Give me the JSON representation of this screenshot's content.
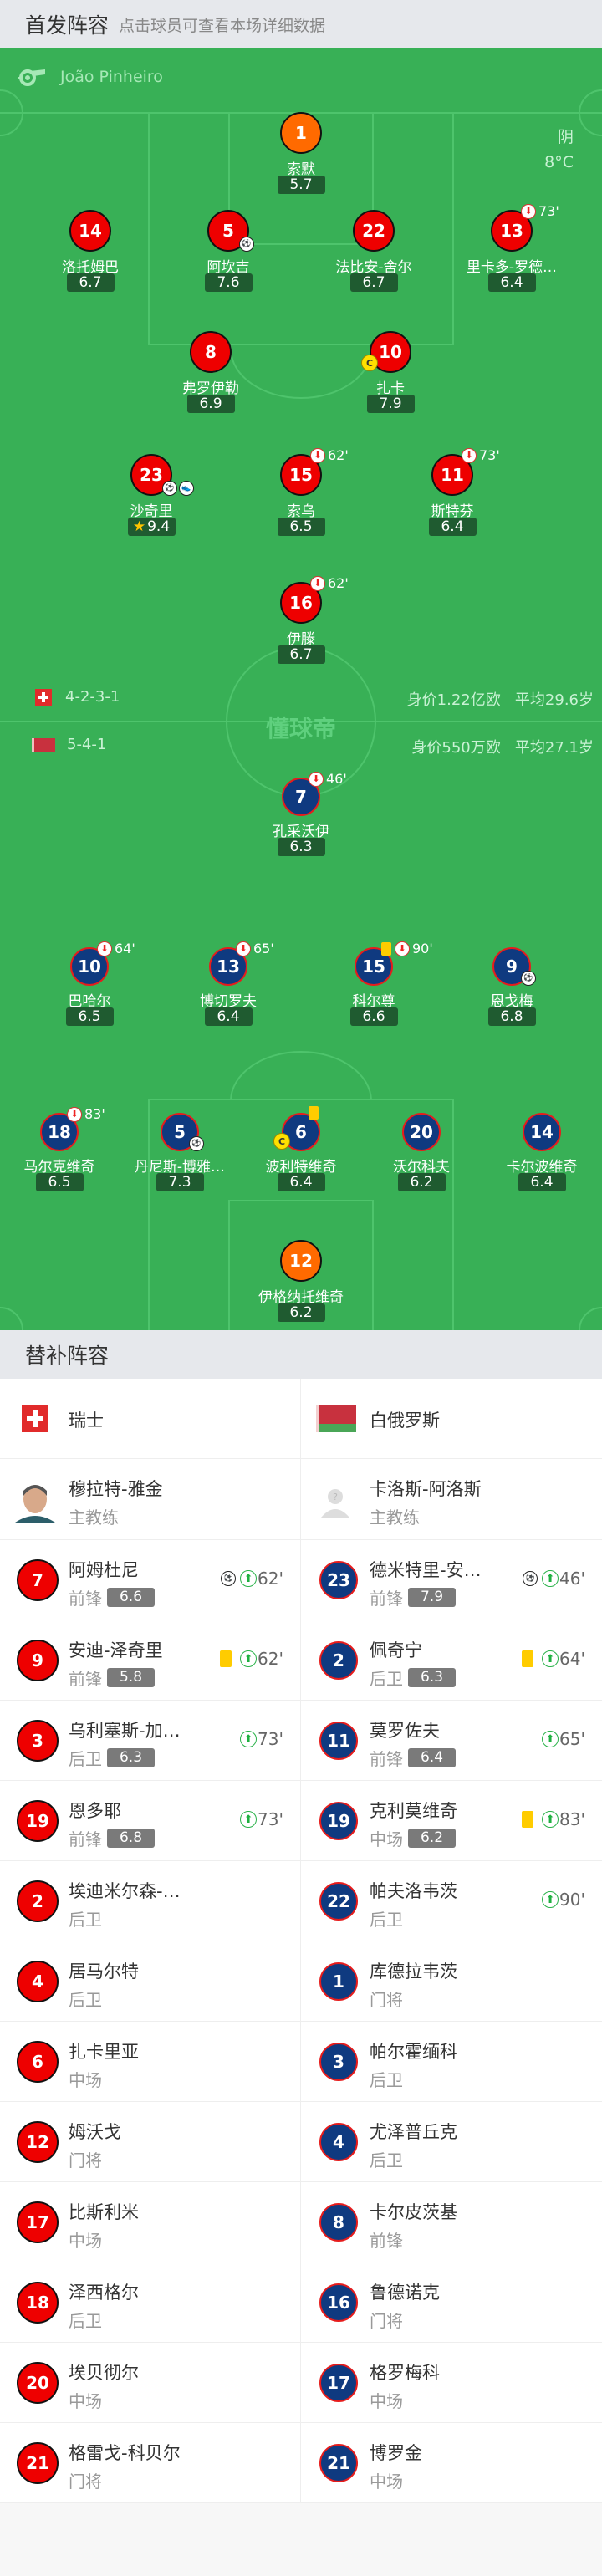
{
  "header": {
    "title": "首发阵容",
    "subtitle": "点击球员可查看本场详细数据"
  },
  "referee": {
    "icon": "whistle-icon",
    "name": "João Pinheiro"
  },
  "weather": {
    "condition": "阴",
    "temp": "8°C"
  },
  "watermark": "懂球帝",
  "colors": {
    "pitch": "#38b056",
    "home": "#ee0000",
    "away": "#0f3a80",
    "goalkeeper": "#ff6a00",
    "rating_bg": "#1f5b30"
  },
  "home": {
    "team": "瑞士",
    "formation": "4-2-3-1",
    "value": "身价1.22亿欧",
    "avg_age": "平均29.6岁",
    "players": [
      {
        "num": "1",
        "name": "索默",
        "rating": "5.7",
        "gk": true
      },
      {
        "num": "14",
        "name": "洛托姆巴",
        "rating": "6.7"
      },
      {
        "num": "5",
        "name": "阿坎吉",
        "rating": "7.6",
        "goal": true
      },
      {
        "num": "22",
        "name": "法比安-舍尔",
        "rating": "6.7"
      },
      {
        "num": "13",
        "name": "里卡多-罗德…",
        "rating": "6.4",
        "sub_off": "73'"
      },
      {
        "num": "8",
        "name": "弗罗伊勒",
        "rating": "6.9"
      },
      {
        "num": "10",
        "name": "扎卡",
        "rating": "7.9",
        "captain": "C"
      },
      {
        "num": "23",
        "name": "沙奇里",
        "rating": "9.4",
        "goal": true,
        "assist": true,
        "mvp": true
      },
      {
        "num": "15",
        "name": "索乌",
        "rating": "6.5",
        "sub_off": "62'"
      },
      {
        "num": "11",
        "name": "斯特芬",
        "rating": "6.4",
        "sub_off": "73'"
      },
      {
        "num": "16",
        "name": "伊滕",
        "rating": "6.7",
        "sub_off": "62'"
      }
    ]
  },
  "away": {
    "team": "白俄罗斯",
    "formation": "5-4-1",
    "value": "身价550万欧",
    "avg_age": "平均27.1岁",
    "players": [
      {
        "num": "7",
        "name": "孔采沃伊",
        "rating": "6.3",
        "sub_off": "46'"
      },
      {
        "num": "10",
        "name": "巴哈尔",
        "rating": "6.5",
        "sub_off": "64'"
      },
      {
        "num": "13",
        "name": "博切罗夫",
        "rating": "6.4",
        "sub_off": "65'"
      },
      {
        "num": "15",
        "name": "科尔尊",
        "rating": "6.6",
        "sub_off": "90'",
        "yellow": true
      },
      {
        "num": "9",
        "name": "恩戈梅",
        "rating": "6.8",
        "goal": true
      },
      {
        "num": "18",
        "name": "马尔克维奇",
        "rating": "6.5",
        "sub_off": "83'"
      },
      {
        "num": "5",
        "name": "丹尼斯-博雅…",
        "rating": "7.3",
        "goal": true
      },
      {
        "num": "6",
        "name": "波利特维奇",
        "rating": "6.4",
        "yellow": true,
        "captain": "C"
      },
      {
        "num": "20",
        "name": "沃尔科夫",
        "rating": "6.2"
      },
      {
        "num": "14",
        "name": "卡尔波维奇",
        "rating": "6.4"
      },
      {
        "num": "12",
        "name": "伊格纳托维奇",
        "rating": "6.2",
        "gk": true
      }
    ]
  },
  "subs": {
    "title": "替补阵容",
    "home": {
      "team": "瑞士",
      "coach": "穆拉特-雅金",
      "coach_role": "主教练",
      "players": [
        {
          "num": "7",
          "name": "阿姆杜尼",
          "pos": "前锋",
          "rating": "6.6",
          "goal": true,
          "sub_on": "62'"
        },
        {
          "num": "9",
          "name": "安迪-泽奇里",
          "pos": "前锋",
          "rating": "5.8",
          "yellow": true,
          "sub_on": "62'"
        },
        {
          "num": "3",
          "name": "乌利塞斯-加…",
          "pos": "后卫",
          "rating": "6.3",
          "sub_on": "73'"
        },
        {
          "num": "19",
          "name": "恩多耶",
          "pos": "前锋",
          "rating": "6.8",
          "sub_on": "73'"
        },
        {
          "num": "2",
          "name": "埃迪米尔森-…",
          "pos": "后卫"
        },
        {
          "num": "4",
          "name": "居马尔特",
          "pos": "后卫"
        },
        {
          "num": "6",
          "name": "扎卡里亚",
          "pos": "中场"
        },
        {
          "num": "12",
          "name": "姆沃戈",
          "pos": "门将"
        },
        {
          "num": "17",
          "name": "比斯利米",
          "pos": "中场"
        },
        {
          "num": "18",
          "name": "泽西格尔",
          "pos": "后卫"
        },
        {
          "num": "20",
          "name": "埃贝彻尔",
          "pos": "中场"
        },
        {
          "num": "21",
          "name": "格雷戈-科贝尔",
          "pos": "门将"
        }
      ]
    },
    "away": {
      "team": "白俄罗斯",
      "coach": "卡洛斯-阿洛斯",
      "coach_role": "主教练",
      "players": [
        {
          "num": "23",
          "name": "德米特里-安…",
          "pos": "前锋",
          "rating": "7.9",
          "goal": true,
          "sub_on": "46'"
        },
        {
          "num": "2",
          "name": "佩奇宁",
          "pos": "后卫",
          "rating": "6.3",
          "yellow": true,
          "sub_on": "64'"
        },
        {
          "num": "11",
          "name": "莫罗佐夫",
          "pos": "前锋",
          "rating": "6.4",
          "sub_on": "65'"
        },
        {
          "num": "19",
          "name": "克利莫维奇",
          "pos": "中场",
          "rating": "6.2",
          "yellow": true,
          "sub_on": "83'"
        },
        {
          "num": "22",
          "name": "帕夫洛韦茨",
          "pos": "后卫",
          "sub_on": "90'"
        },
        {
          "num": "1",
          "name": "库德拉韦茨",
          "pos": "门将"
        },
        {
          "num": "3",
          "name": "帕尔霍缅科",
          "pos": "后卫"
        },
        {
          "num": "4",
          "name": "尤泽普丘克",
          "pos": "后卫"
        },
        {
          "num": "8",
          "name": "卡尔皮茨基",
          "pos": "前锋"
        },
        {
          "num": "16",
          "name": "鲁德诺克",
          "pos": "门将"
        },
        {
          "num": "17",
          "name": "格罗梅科",
          "pos": "中场"
        },
        {
          "num": "21",
          "name": "博罗金",
          "pos": "中场"
        }
      ]
    }
  }
}
